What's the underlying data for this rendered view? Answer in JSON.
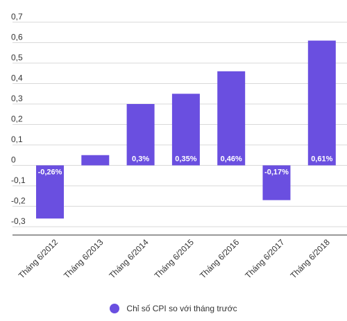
{
  "chart_data": {
    "type": "bar",
    "categories": [
      "Tháng 6/2012",
      "Tháng 6/2013",
      "Tháng 6/2014",
      "Tháng 6/2015",
      "Tháng 6/2016",
      "Tháng 6/2017",
      "Tháng 6/2018"
    ],
    "series": [
      {
        "name": "Chỉ số CPI so với tháng trước",
        "values": [
          -0.26,
          0.05,
          0.3,
          0.35,
          0.46,
          -0.17,
          0.61
        ],
        "data_labels": [
          "-0,26%",
          "",
          "0,3%",
          "0,35%",
          "0,46%",
          "-0,17%",
          "0,61%"
        ]
      }
    ],
    "ylim": [
      -0.3,
      0.7
    ],
    "yticks": [
      0.7,
      0.6,
      0.5,
      0.4,
      0.3,
      0.2,
      0.1,
      0,
      -0.1,
      -0.2,
      -0.3
    ],
    "ytick_labels": [
      "0,7",
      "0,6",
      "0,5",
      "0,4",
      "0,3",
      "0,2",
      "0,1",
      "0",
      "-0,1",
      "-0,2",
      "-0,3"
    ],
    "grid": true,
    "legend_position": "bottom",
    "bar_color": "#6a4fe0",
    "title": "",
    "xlabel": "",
    "ylabel": ""
  }
}
